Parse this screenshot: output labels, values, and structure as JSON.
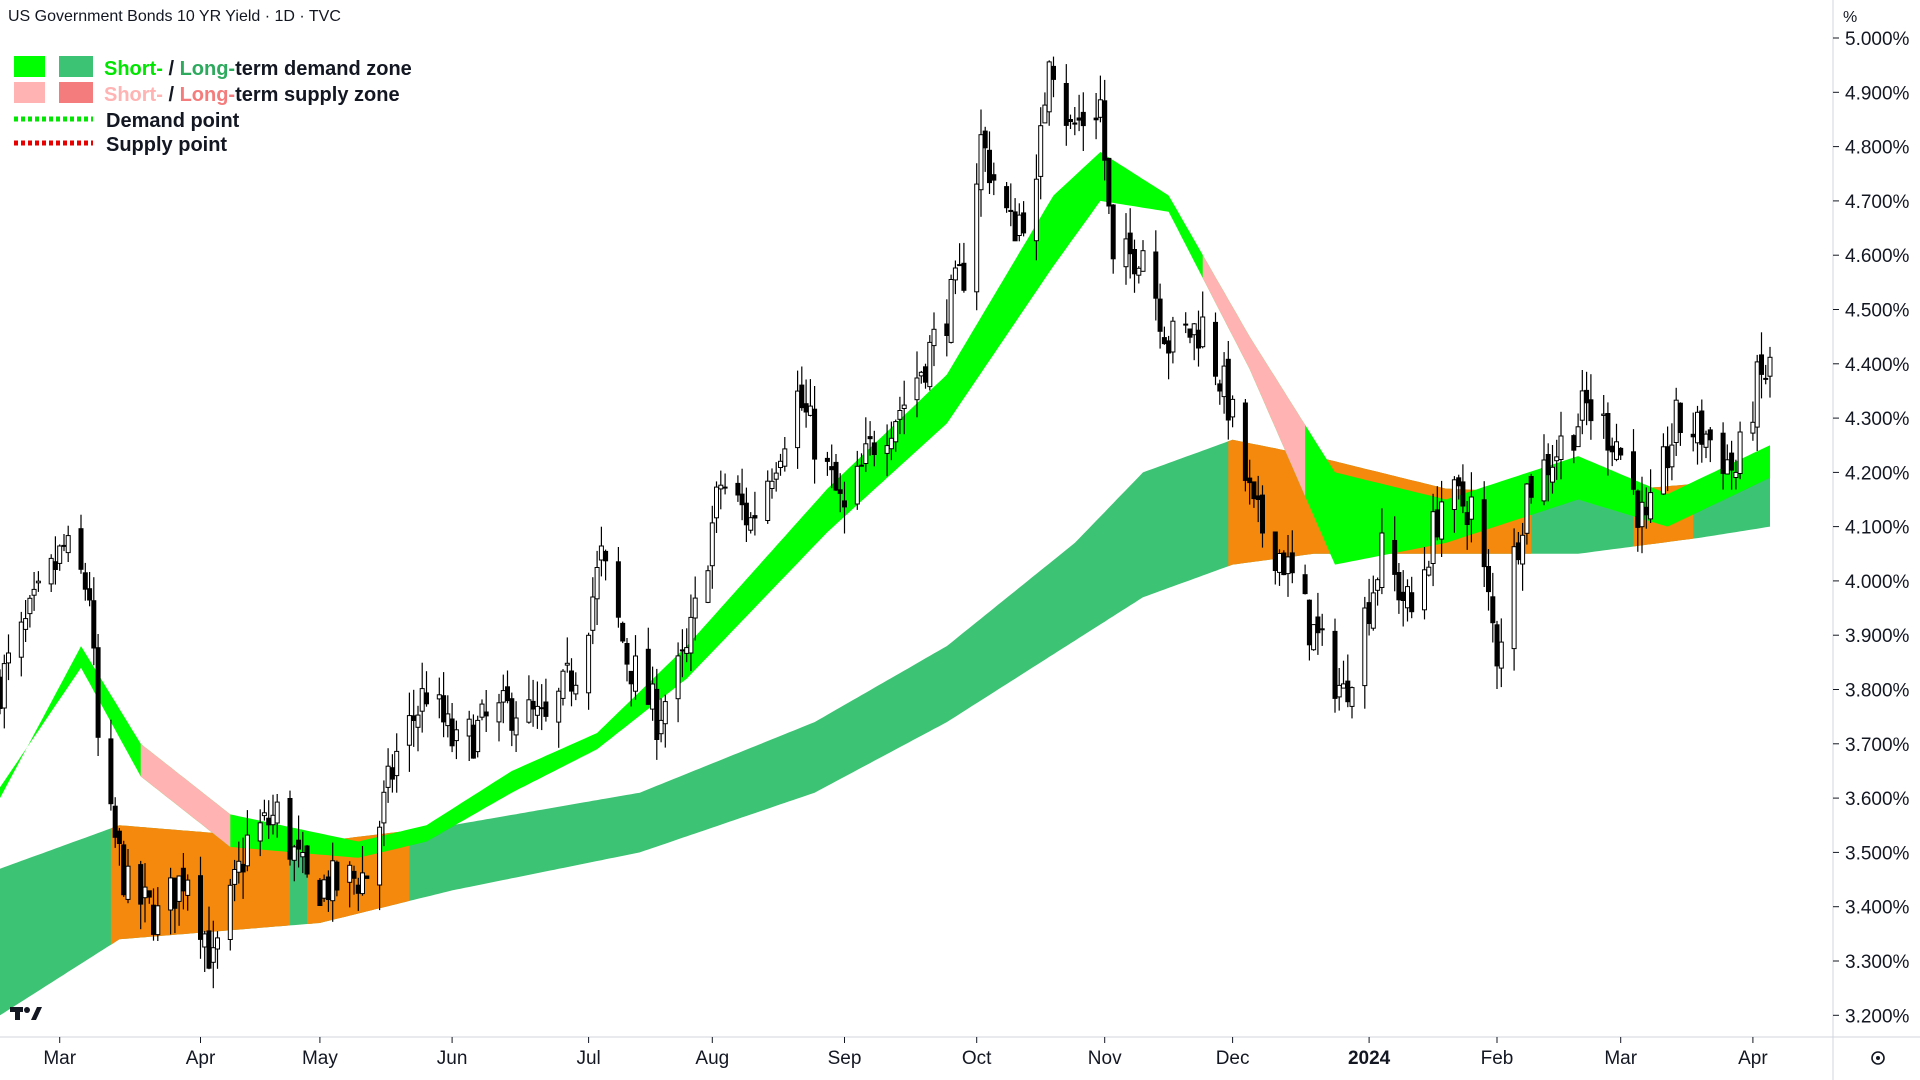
{
  "header": {
    "title": "US Government Bonds 10 YR Yield · 1D · TVC"
  },
  "price_axis": {
    "unit": "%"
  },
  "legend": {
    "demand_zone": {
      "short": "Short-",
      "sep": " / ",
      "long": "Long-",
      "rest": "term demand zone"
    },
    "supply_zone": {
      "short": "Short-",
      "sep": " / ",
      "long": "Long-",
      "rest": "term supply zone"
    },
    "demand_point": "Demand point",
    "supply_point": "Supply point"
  },
  "colors": {
    "short_demand": "#00ff00",
    "long_demand": "#3cc373",
    "short_supply": "#ffb3b3",
    "long_supply": "#f47c7c",
    "transition": "#f5890d",
    "demand_point": "#00e600",
    "supply_point": "#e60000",
    "candle": "#000000",
    "legend_short_text": "#00e600",
    "legend_long_text": "#2eaa5e",
    "legend_short_supply_text": "#ffb3b3",
    "legend_long_supply_text": "#f47c7c"
  },
  "icons": {
    "logo": "tradingview-logo-icon",
    "settings": "settings-gear-icon"
  },
  "chart_data": {
    "type": "candlestick",
    "title": "US Government Bonds 10 YR Yield · 1D · TVC",
    "ylabel": "%",
    "ylim": [
      3.16,
      5.07
    ],
    "y_ticks": [
      "3.200%",
      "3.300%",
      "3.400%",
      "3.500%",
      "3.600%",
      "3.700%",
      "3.800%",
      "3.900%",
      "4.000%",
      "4.100%",
      "4.200%",
      "4.300%",
      "4.400%",
      "4.500%",
      "4.600%",
      "4.700%",
      "4.800%",
      "4.900%",
      "5.000%"
    ],
    "y_tick_values": [
      3.2,
      3.3,
      3.4,
      3.5,
      3.6,
      3.7,
      3.8,
      3.9,
      4.0,
      4.1,
      4.2,
      4.3,
      4.4,
      4.5,
      4.6,
      4.7,
      4.8,
      4.9,
      5.0
    ],
    "x_range": [
      "2023-02-15",
      "2024-04-05"
    ],
    "x_ticks": [
      {
        "label": "Mar",
        "date": "2023-03-01"
      },
      {
        "label": "Apr",
        "date": "2023-04-03"
      },
      {
        "label": "May",
        "date": "2023-05-01"
      },
      {
        "label": "Jun",
        "date": "2023-06-01"
      },
      {
        "label": "Jul",
        "date": "2023-07-03"
      },
      {
        "label": "Aug",
        "date": "2023-08-01"
      },
      {
        "label": "Sep",
        "date": "2023-09-01"
      },
      {
        "label": "Oct",
        "date": "2023-10-02"
      },
      {
        "label": "Nov",
        "date": "2023-11-01"
      },
      {
        "label": "Dec",
        "date": "2023-12-01"
      },
      {
        "label": "2024",
        "date": "2024-01-02",
        "bold": true
      },
      {
        "label": "Feb",
        "date": "2024-02-01"
      },
      {
        "label": "Mar",
        "date": "2024-03-01"
      },
      {
        "label": "Apr",
        "date": "2024-04-01"
      }
    ],
    "close_path": [
      [
        "2023-02-15",
        3.81
      ],
      [
        "2023-02-22",
        3.93
      ],
      [
        "2023-03-02",
        4.06
      ],
      [
        "2023-03-08",
        3.98
      ],
      [
        "2023-03-10",
        3.7
      ],
      [
        "2023-03-13",
        3.55
      ],
      [
        "2023-03-17",
        3.43
      ],
      [
        "2023-03-24",
        3.38
      ],
      [
        "2023-03-31",
        3.47
      ],
      [
        "2023-04-06",
        3.29
      ],
      [
        "2023-04-14",
        3.52
      ],
      [
        "2023-04-21",
        3.57
      ],
      [
        "2023-04-28",
        3.44
      ],
      [
        "2023-05-05",
        3.44
      ],
      [
        "2023-05-12",
        3.46
      ],
      [
        "2023-05-19",
        3.68
      ],
      [
        "2023-05-26",
        3.8
      ],
      [
        "2023-06-02",
        3.69
      ],
      [
        "2023-06-09",
        3.74
      ],
      [
        "2023-06-16",
        3.77
      ],
      [
        "2023-06-23",
        3.73
      ],
      [
        "2023-06-30",
        3.84
      ],
      [
        "2023-07-06",
        4.04
      ],
      [
        "2023-07-12",
        3.86
      ],
      [
        "2023-07-19",
        3.75
      ],
      [
        "2023-07-26",
        3.86
      ],
      [
        "2023-08-03",
        4.18
      ],
      [
        "2023-08-10",
        4.11
      ],
      [
        "2023-08-21",
        4.34
      ],
      [
        "2023-08-28",
        4.2
      ],
      [
        "2023-09-01",
        4.12
      ],
      [
        "2023-09-08",
        4.26
      ],
      [
        "2023-09-15",
        4.33
      ],
      [
        "2023-09-22",
        4.44
      ],
      [
        "2023-09-29",
        4.57
      ],
      [
        "2023-10-03",
        4.81
      ],
      [
        "2023-10-10",
        4.65
      ],
      [
        "2023-10-16",
        4.71
      ],
      [
        "2023-10-19",
        4.99
      ],
      [
        "2023-10-24",
        4.83
      ],
      [
        "2023-10-31",
        4.88
      ],
      [
        "2023-11-03",
        4.57
      ],
      [
        "2023-11-10",
        4.62
      ],
      [
        "2023-11-16",
        4.44
      ],
      [
        "2023-11-24",
        4.47
      ],
      [
        "2023-11-30",
        4.33
      ],
      [
        "2023-12-06",
        4.12
      ],
      [
        "2023-12-13",
        4.04
      ],
      [
        "2023-12-19",
        3.92
      ],
      [
        "2023-12-27",
        3.79
      ],
      [
        "2024-01-05",
        4.05
      ],
      [
        "2024-01-12",
        3.94
      ],
      [
        "2024-01-19",
        4.15
      ],
      [
        "2024-01-26",
        4.14
      ],
      [
        "2024-02-01",
        3.87
      ],
      [
        "2024-02-08",
        4.17
      ],
      [
        "2024-02-15",
        4.24
      ],
      [
        "2024-02-22",
        4.32
      ],
      [
        "2024-02-29",
        4.26
      ],
      [
        "2024-03-07",
        4.09
      ],
      [
        "2024-03-14",
        4.29
      ],
      [
        "2024-03-21",
        4.27
      ],
      [
        "2024-03-28",
        4.2
      ],
      [
        "2024-04-02",
        4.36
      ],
      [
        "2024-04-05",
        4.39
      ]
    ],
    "short_zone_upper": [
      [
        "2023-02-15",
        3.6
      ],
      [
        "2023-03-06",
        3.88
      ],
      [
        "2023-03-20",
        3.7
      ],
      [
        "2023-04-10",
        3.57
      ],
      [
        "2023-05-10",
        3.52
      ],
      [
        "2023-05-26",
        3.55
      ],
      [
        "2023-06-15",
        3.65
      ],
      [
        "2023-07-05",
        3.72
      ],
      [
        "2023-07-26",
        3.88
      ],
      [
        "2023-08-28",
        4.17
      ],
      [
        "2023-09-25",
        4.38
      ],
      [
        "2023-10-20",
        4.71
      ],
      [
        "2023-10-31",
        4.79
      ],
      [
        "2023-11-16",
        4.71
      ],
      [
        "2023-12-05",
        4.45
      ],
      [
        "2023-12-25",
        4.2
      ],
      [
        "2024-01-20",
        4.15
      ],
      [
        "2024-02-20",
        4.23
      ],
      [
        "2024-03-12",
        4.16
      ],
      [
        "2024-04-05",
        4.25
      ]
    ],
    "short_zone_lower": [
      [
        "2023-02-15",
        3.62
      ],
      [
        "2023-03-06",
        3.84
      ],
      [
        "2023-03-20",
        3.64
      ],
      [
        "2023-04-10",
        3.51
      ],
      [
        "2023-05-10",
        3.49
      ],
      [
        "2023-05-26",
        3.52
      ],
      [
        "2023-06-15",
        3.61
      ],
      [
        "2023-07-05",
        3.69
      ],
      [
        "2023-07-26",
        3.82
      ],
      [
        "2023-08-28",
        4.09
      ],
      [
        "2023-09-25",
        4.29
      ],
      [
        "2023-10-20",
        4.58
      ],
      [
        "2023-10-31",
        4.7
      ],
      [
        "2023-11-16",
        4.68
      ],
      [
        "2023-12-05",
        4.39
      ],
      [
        "2023-12-25",
        4.03
      ],
      [
        "2024-01-20",
        4.07
      ],
      [
        "2024-02-20",
        4.15
      ],
      [
        "2024-03-12",
        4.1
      ],
      [
        "2024-04-05",
        4.19
      ]
    ],
    "long_zone_upper": [
      [
        "2023-02-15",
        3.47
      ],
      [
        "2023-03-15",
        3.55
      ],
      [
        "2023-05-01",
        3.52
      ],
      [
        "2023-06-01",
        3.55
      ],
      [
        "2023-07-15",
        3.61
      ],
      [
        "2023-08-25",
        3.74
      ],
      [
        "2023-09-25",
        3.88
      ],
      [
        "2023-10-25",
        4.07
      ],
      [
        "2023-11-10",
        4.2
      ],
      [
        "2023-12-01",
        4.26
      ],
      [
        "2023-12-20",
        4.23
      ],
      [
        "2024-01-20",
        4.17
      ],
      [
        "2024-02-20",
        4.16
      ],
      [
        "2024-03-20",
        4.18
      ],
      [
        "2024-04-05",
        4.19
      ]
    ],
    "long_zone_lower": [
      [
        "2023-02-15",
        3.2
      ],
      [
        "2023-03-15",
        3.34
      ],
      [
        "2023-05-01",
        3.37
      ],
      [
        "2023-06-01",
        3.43
      ],
      [
        "2023-07-15",
        3.5
      ],
      [
        "2023-08-25",
        3.61
      ],
      [
        "2023-09-25",
        3.74
      ],
      [
        "2023-10-25",
        3.89
      ],
      [
        "2023-11-10",
        3.97
      ],
      [
        "2023-12-01",
        4.03
      ],
      [
        "2023-12-20",
        4.05
      ],
      [
        "2024-01-20",
        4.05
      ],
      [
        "2024-02-20",
        4.05
      ],
      [
        "2024-03-20",
        4.08
      ],
      [
        "2024-04-05",
        4.1
      ]
    ],
    "transition_periods": [
      [
        "2023-03-13",
        "2023-04-24"
      ],
      [
        "2023-04-28",
        "2023-05-22"
      ],
      [
        "2023-11-30",
        "2024-02-09"
      ],
      [
        "2024-03-04",
        "2024-03-18"
      ]
    ],
    "supply_periods": [
      [
        "2023-03-20",
        "2023-04-10"
      ],
      [
        "2023-11-24",
        "2023-12-18"
      ]
    ]
  }
}
